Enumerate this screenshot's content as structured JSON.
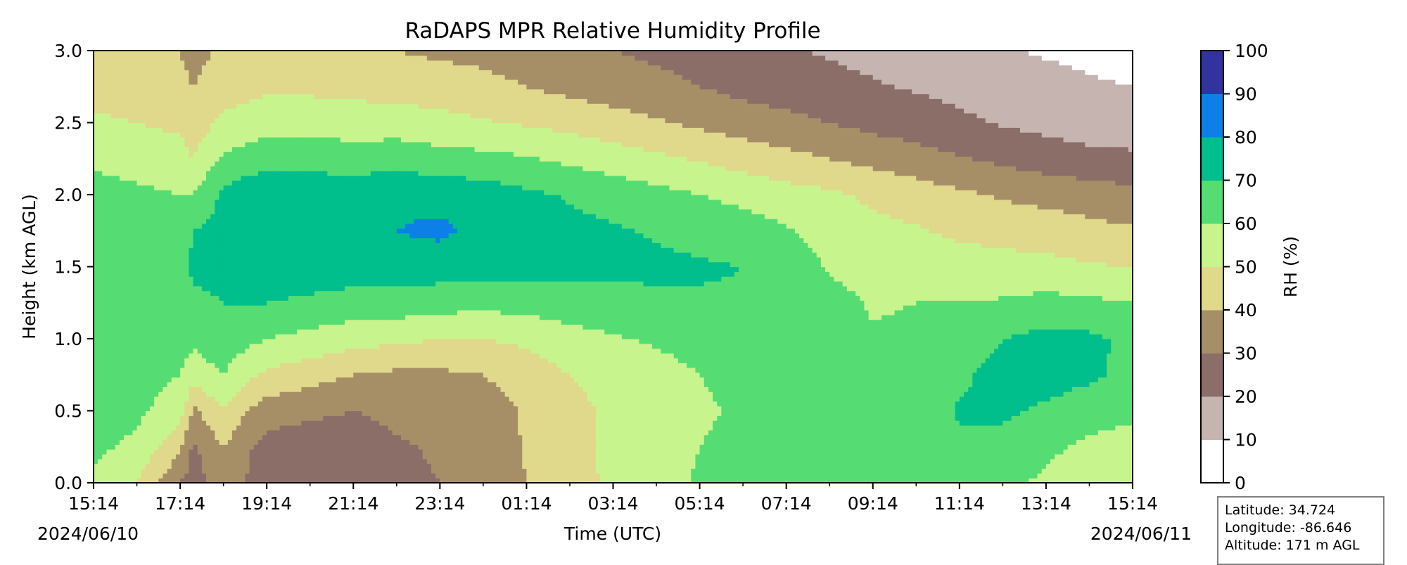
{
  "chart_data": {
    "type": "heatmap",
    "title": "RaDAPS MPR Relative Humidity Profile",
    "xlabel": "Time (UTC)",
    "ylabel": "Height (km AGL)",
    "xlim": [
      "2024-06-10 15:14",
      "2024-06-11 15:14"
    ],
    "ylim": [
      0.0,
      3.0
    ],
    "x_ticks": [
      "15:14",
      "17:14",
      "19:14",
      "21:14",
      "23:14",
      "01:14",
      "03:14",
      "05:14",
      "07:14",
      "09:14",
      "11:14",
      "13:14",
      "15:14"
    ],
    "y_ticks": [
      "0.0",
      "0.5",
      "1.0",
      "1.5",
      "2.0",
      "2.5",
      "3.0"
    ],
    "date_start": "2024/06/10",
    "date_end": "2024/06/11",
    "colorbar": {
      "label": "RH (%)",
      "ticks": [
        "0",
        "10",
        "20",
        "30",
        "40",
        "50",
        "60",
        "70",
        "80",
        "90",
        "100"
      ],
      "levels": [
        0,
        10,
        20,
        30,
        40,
        50,
        60,
        70,
        80,
        90,
        100
      ],
      "colors": [
        "#ffffff",
        "#c5b4b0",
        "#8c6e68",
        "#a68f67",
        "#e0d88b",
        "#c8f48d",
        "#55dd73",
        "#00bf8d",
        "#0c80e6",
        "#3232a0"
      ]
    },
    "grid": false,
    "hours_since_start": [
      0,
      1,
      2,
      2.3,
      3,
      3.5,
      4,
      5,
      6,
      7,
      8,
      9,
      10,
      11,
      12,
      13,
      14,
      15,
      16,
      17,
      18,
      19,
      20,
      21,
      22,
      23,
      24
    ],
    "heights_km": [
      0.0,
      0.25,
      0.5,
      0.75,
      1.0,
      1.25,
      1.5,
      1.75,
      2.0,
      2.25,
      2.5,
      2.75,
      3.0
    ],
    "rh_percent": [
      [
        58,
        62,
        64,
        66,
        68,
        68,
        66,
        66,
        64,
        58,
        52,
        46,
        42
      ],
      [
        50,
        58,
        62,
        64,
        66,
        66,
        64,
        64,
        62,
        56,
        50,
        45,
        42
      ],
      [
        30,
        42,
        55,
        60,
        63,
        66,
        66,
        64,
        60,
        54,
        48,
        43,
        40
      ],
      [
        25,
        28,
        38,
        55,
        62,
        68,
        72,
        70,
        60,
        50,
        45,
        40,
        36
      ],
      [
        36,
        40,
        50,
        60,
        66,
        70,
        72,
        74,
        72,
        62,
        52,
        46,
        42
      ],
      [
        30,
        32,
        40,
        53,
        63,
        70,
        75,
        78,
        76,
        64,
        54,
        47,
        42
      ],
      [
        25,
        26,
        35,
        48,
        60,
        70,
        76,
        80,
        78,
        66,
        56,
        48,
        43
      ],
      [
        22,
        24,
        32,
        44,
        57,
        68,
        76,
        79,
        77,
        66,
        56,
        48,
        43
      ],
      [
        24,
        25,
        30,
        40,
        54,
        66,
        75,
        79,
        76,
        65,
        55,
        47,
        41
      ],
      [
        28,
        29,
        32,
        38,
        52,
        66,
        76,
        80,
        78,
        66,
        55,
        46,
        40
      ],
      [
        30,
        31,
        34,
        38,
        50,
        64,
        75,
        82,
        77,
        64,
        53,
        45,
        38
      ],
      [
        33,
        34,
        35,
        40,
        50,
        63,
        74,
        77,
        75,
        63,
        51,
        43,
        37
      ],
      [
        40,
        41,
        41,
        45,
        52,
        64,
        74,
        75,
        72,
        61,
        49,
        40,
        35
      ],
      [
        46,
        47,
        47,
        50,
        56,
        66,
        73,
        73,
        69,
        58,
        47,
        37,
        32
      ],
      [
        52,
        52,
        52,
        54,
        59,
        67,
        72,
        71,
        66,
        55,
        44,
        35,
        30
      ],
      [
        57,
        56,
        55,
        57,
        61,
        68,
        72,
        69,
        63,
        52,
        41,
        33,
        28
      ],
      [
        61,
        60,
        59,
        60,
        63,
        69,
        71,
        67,
        60,
        49,
        38,
        30,
        26
      ],
      [
        63,
        62,
        61,
        62,
        64,
        69,
        70,
        65,
        57,
        46,
        35,
        27,
        23
      ],
      [
        65,
        64,
        63,
        63,
        64,
        67,
        66,
        61,
        54,
        43,
        33,
        25,
        21
      ],
      [
        68,
        66,
        64,
        62,
        62,
        63,
        59,
        56,
        52,
        40,
        30,
        23,
        19
      ],
      [
        70,
        67,
        65,
        62,
        61,
        59,
        57,
        53,
        48,
        37,
        27,
        21,
        17
      ],
      [
        69,
        67,
        65,
        64,
        62,
        60,
        56,
        51,
        45,
        34,
        25,
        19,
        15
      ],
      [
        66,
        68,
        71,
        68,
        64,
        60,
        55,
        48,
        42,
        31,
        22,
        17,
        13
      ],
      [
        63,
        66,
        72,
        74,
        70,
        61,
        54,
        46,
        39,
        28,
        19,
        15,
        11
      ],
      [
        58,
        62,
        68,
        75,
        73,
        63,
        53,
        45,
        37,
        25,
        17,
        13,
        9
      ],
      [
        54,
        58,
        64,
        72,
        72,
        62,
        51,
        43,
        35,
        23,
        15,
        11,
        8
      ],
      [
        50,
        56,
        62,
        67,
        68,
        60,
        50,
        41,
        33,
        22,
        14,
        10,
        7
      ]
    ]
  },
  "station": {
    "latitude": "Latitude: 34.724",
    "longitude": "Longitude: -86.646",
    "altitude": "Altitude: 171 m AGL"
  }
}
